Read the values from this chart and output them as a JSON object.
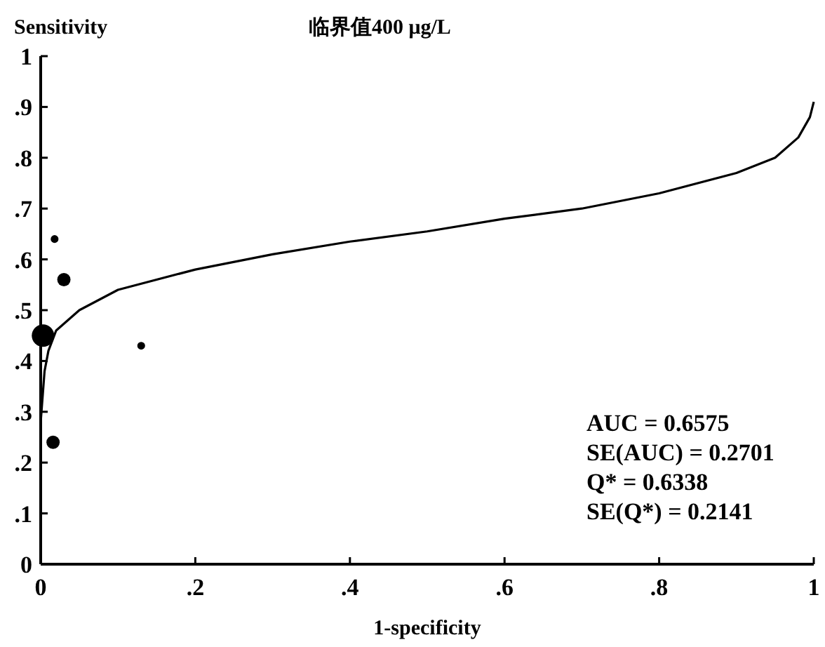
{
  "chart_data": {
    "type": "bubble",
    "title": "临界值400 μg/L",
    "xlabel": "1-specificity",
    "ylabel": "Sensitivity",
    "xlim": [
      0,
      1
    ],
    "ylim": [
      0,
      1
    ],
    "xticks": [
      0,
      {
        "value": 0.2,
        "label": ".2"
      },
      {
        "value": 0.4,
        "label": ".4"
      },
      {
        "value": 0.6,
        "label": ".6"
      },
      {
        "value": 0.8,
        "label": ".8"
      },
      1
    ],
    "yticks": [
      0,
      {
        "value": 0.1,
        "label": ".1"
      },
      {
        "value": 0.2,
        "label": ".2"
      },
      {
        "value": 0.3,
        "label": ".3"
      },
      {
        "value": 0.4,
        "label": ".4"
      },
      {
        "value": 0.5,
        "label": ".5"
      },
      {
        "value": 0.6,
        "label": ".6"
      },
      {
        "value": 0.7,
        "label": ".7"
      },
      {
        "value": 0.8,
        "label": ".8"
      },
      {
        "value": 0.9,
        "label": ".9"
      },
      1
    ],
    "grid": false,
    "series": [
      {
        "type": "bubble",
        "color": "#000000",
        "x": [
          0.018,
          0.03,
          0.003,
          0.13,
          0.016
        ],
        "values": [
          0.64,
          0.56,
          0.45,
          0.43,
          0.24
        ],
        "sizes": [
          0.12,
          0.35,
          1,
          0.12,
          0.35
        ]
      },
      {
        "type": "line",
        "color": "#000000",
        "x": [
          0,
          0.005,
          0.01,
          0.02,
          0.05,
          0.1,
          0.2,
          0.3,
          0.4,
          0.5,
          0.6,
          0.7,
          0.8,
          0.9,
          0.95,
          0.98,
          0.995,
          1
        ],
        "values": [
          0.28,
          0.38,
          0.42,
          0.46,
          0.5,
          0.54,
          0.58,
          0.61,
          0.635,
          0.655,
          0.68,
          0.7,
          0.73,
          0.77,
          0.8,
          0.84,
          0.88,
          0.91
        ]
      }
    ],
    "annotations": [
      "AUC = 0.6575",
      "SE(AUC) = 0.2701",
      "Q* = 0.6338",
      "SE(Q*) = 0.2141"
    ]
  }
}
